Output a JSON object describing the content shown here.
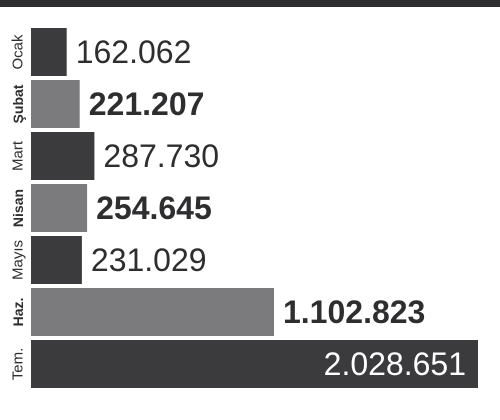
{
  "chart_data": {
    "type": "bar",
    "orientation": "horizontal",
    "categories": [
      "Ocak",
      "Şubat",
      "Mart",
      "Nisan",
      "Mayıs",
      "Haz.",
      "Tem."
    ],
    "category_labels": [
      "Ocak",
      "Şubat",
      "Mart",
      "Nisan",
      "Mayıs",
      "Haz.",
      "Tem."
    ],
    "values": [
      162062,
      221207,
      287730,
      254645,
      231029,
      1102823,
      2028651
    ],
    "value_labels": [
      "162.062",
      "221.207",
      "287.730",
      "254.645",
      "231.029",
      "1.102.823",
      "2.028.651"
    ],
    "emphasized": [
      false,
      true,
      false,
      true,
      false,
      true,
      false
    ],
    "bar_colors": [
      "#3b3b3d",
      "#7b7b7d",
      "#3b3b3d",
      "#7b7b7d",
      "#3b3b3d",
      "#7b7b7d",
      "#3b3b3d"
    ],
    "title": "",
    "xlabel": "",
    "ylabel": "",
    "grid": false,
    "legend": false
  }
}
